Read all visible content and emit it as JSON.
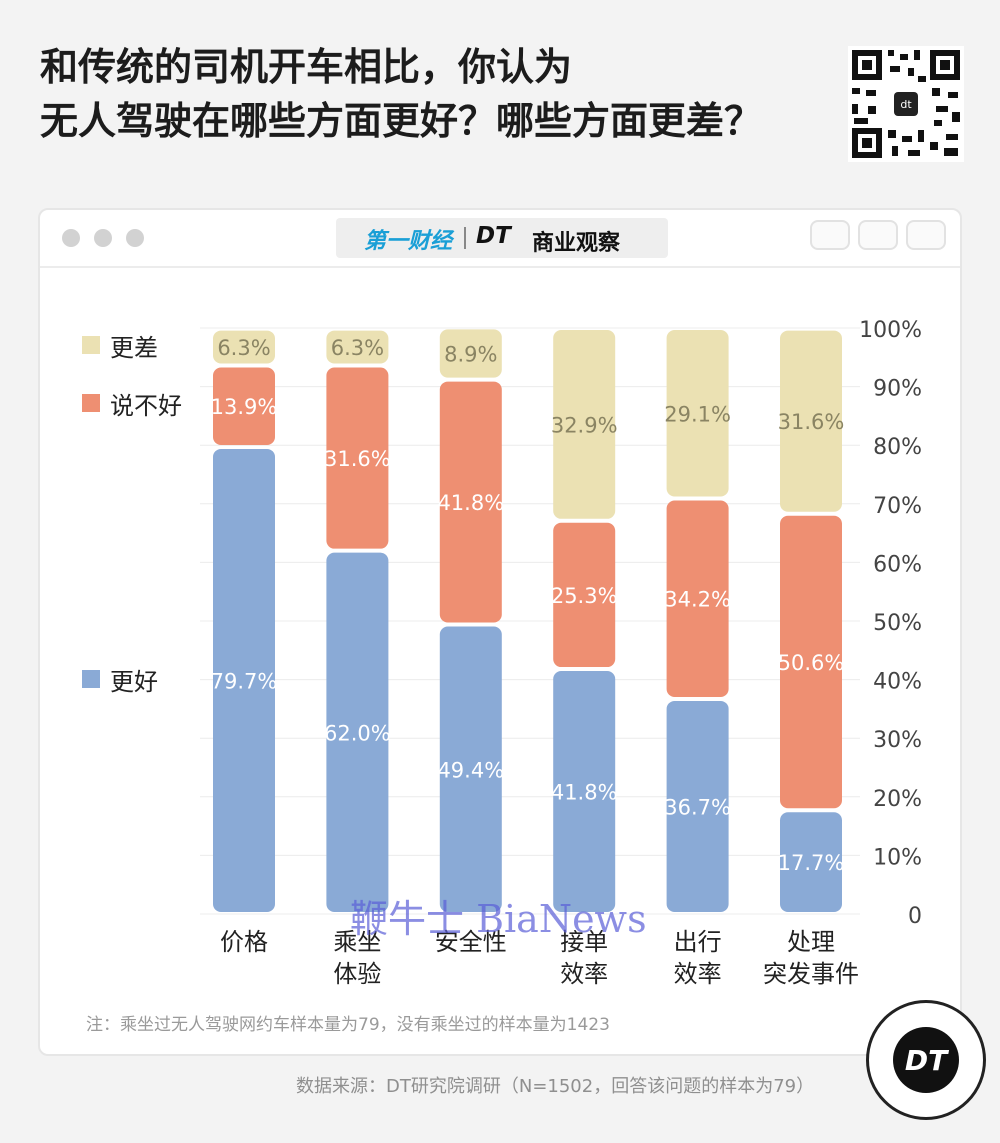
{
  "header": {
    "title_line1": "和传统的司机开车相比，你认为",
    "title_line2": "无人驾驶在哪些方面更好？哪些方面更差？"
  },
  "brand": {
    "left": "第一财经",
    "right_dt": "DT",
    "right_text": "商业观察"
  },
  "legend": [
    {
      "label": "更差",
      "color": "#ebe1b3"
    },
    {
      "label": "说不好",
      "color": "#ee8f72"
    },
    {
      "label": "更好",
      "color": "#8aaad6"
    }
  ],
  "chart_data": {
    "type": "bar",
    "stacked": true,
    "categories": [
      [
        "价格"
      ],
      [
        "乘坐",
        "体验"
      ],
      [
        "安全性"
      ],
      [
        "接单",
        "效率"
      ],
      [
        "出行",
        "效率"
      ],
      [
        "处理",
        "突发事件"
      ]
    ],
    "series": [
      {
        "name": "更好",
        "color": "#8aaad6",
        "values": [
          79.7,
          62.0,
          49.4,
          41.8,
          36.7,
          17.7
        ]
      },
      {
        "name": "说不好",
        "color": "#ee8f72",
        "values": [
          13.9,
          31.6,
          41.8,
          25.3,
          34.2,
          50.6
        ]
      },
      {
        "name": "更差",
        "color": "#ebe1b3",
        "values": [
          6.3,
          6.3,
          8.9,
          32.9,
          29.1,
          31.6
        ]
      }
    ],
    "ylim": [
      0,
      100
    ],
    "yticks": [
      "0",
      "10%",
      "20%",
      "30%",
      "40%",
      "50%",
      "60%",
      "70%",
      "80%",
      "90%",
      "100%"
    ],
    "grid": true,
    "legend_position": "left"
  },
  "note": "注：乘坐过无人驾驶网约车样本量为79，没有乘坐过的样本量为1423",
  "source": "数据来源：DT研究院调研（N=1502，回答该问题的样本为79）",
  "logo_text": "DT",
  "watermark": "鞭牛士 BiaNews"
}
